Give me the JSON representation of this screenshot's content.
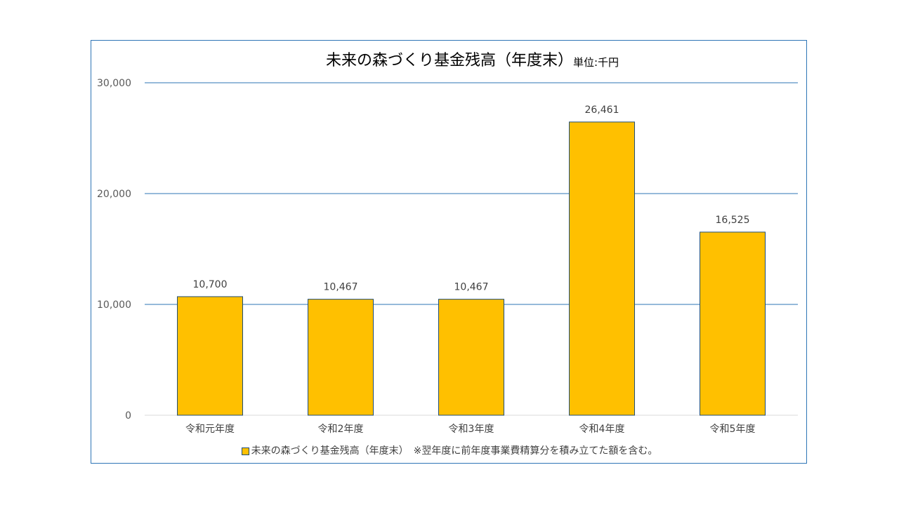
{
  "chart_data": {
    "type": "bar",
    "title": "未来の森づくり基金残高（年度末）",
    "unit": "単位:千円",
    "categories": [
      "令和元年度",
      "令和2年度",
      "令和3年度",
      "令和4年度",
      "令和5年度"
    ],
    "series": [
      {
        "name": "未来の森づくり基金残高（年度末）　※翌年度に前年度事業費精算分を積み立てた額を含む。",
        "values": [
          10700,
          10467,
          10467,
          26461,
          16525
        ],
        "color": "#ffc000",
        "border_color": "#1f4e79"
      }
    ],
    "data_labels": [
      "10,700",
      "10,467",
      "10,467",
      "26,461",
      "16,525"
    ],
    "ylim": [
      0,
      30000
    ],
    "yticks": [
      0,
      10000,
      20000,
      30000
    ],
    "ytick_labels": [
      "0",
      "10,000",
      "20,000",
      "30,000"
    ],
    "grid": true,
    "grid_color": "#2e75b6",
    "legend_position": "bottom"
  }
}
